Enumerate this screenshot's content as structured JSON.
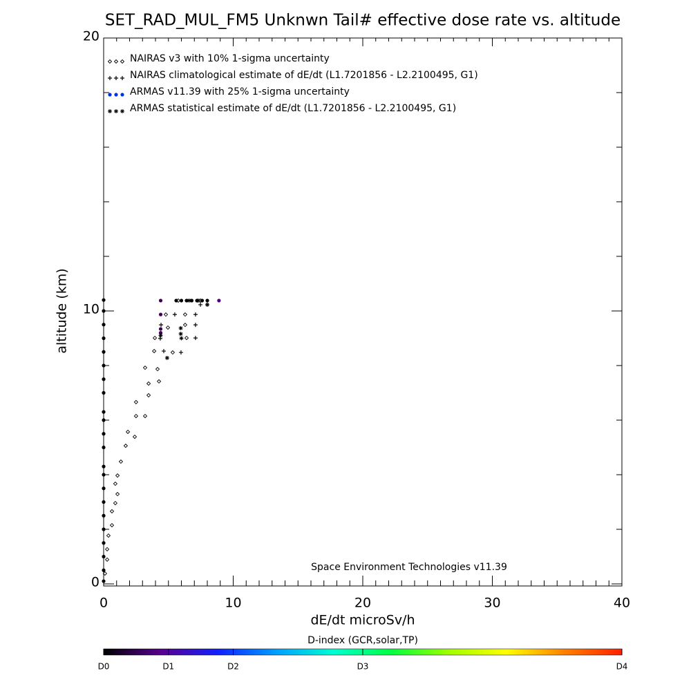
{
  "chart_data": {
    "type": "scatter",
    "title": "SET_RAD_MUL_FM5 Unknwn Tail#  effective dose rate vs. altitude",
    "x_label": "dE/dt microSv/h",
    "y_label": "altitude (km)",
    "annotation": "Space Environment Technologies v11.39",
    "xlim": [
      0,
      40
    ],
    "xticks": [
      0,
      10,
      20,
      30,
      40
    ],
    "ylim": [
      0,
      20
    ],
    "yticks": [
      0,
      10,
      20
    ],
    "legend": "top-left",
    "series": [
      {
        "name": "NAIRAS v3 with 10% 1-sigma uncertainty",
        "marker": "diamond",
        "color": "#000000",
        "x": [
          0.1,
          0.27,
          0.27,
          0.37,
          0.64,
          0.64,
          0.9,
          1.07,
          0.9,
          1.07,
          1.33,
          1.7,
          2.4,
          1.87,
          3.2,
          2.5,
          2.5,
          3.47,
          3.47,
          4.27,
          3.2,
          4.16,
          3.9,
          5.33,
          3.95,
          6.4,
          4.96,
          6.29,
          4.8,
          6.29,
          5.76,
          7.47
        ],
        "y": [
          0.38,
          0.89,
          1.27,
          1.77,
          2.15,
          2.66,
          2.96,
          3.29,
          3.67,
          3.97,
          4.48,
          5.06,
          5.39,
          5.57,
          6.15,
          6.15,
          6.66,
          6.91,
          7.34,
          7.42,
          7.92,
          7.87,
          8.53,
          8.48,
          9.01,
          9.01,
          9.39,
          9.87,
          9.87,
          9.49,
          10.38,
          10.38
        ]
      },
      {
        "name": "NAIRAS climatological estimate of dE/dt (L1.7201856 - L2.2100495, G1)",
        "marker": "plus",
        "color": "#000000",
        "x": [
          4.37,
          4.64,
          5.97,
          4.43,
          5.49,
          7.09,
          7.09,
          7.09,
          8.0,
          7.47
        ],
        "y": [
          8.99,
          8.53,
          8.48,
          9.49,
          9.87,
          9.01,
          9.49,
          9.87,
          10.23,
          10.23
        ]
      },
      {
        "name": "ARMAS v11.39 with 25% 1-sigma uncertainty",
        "marker": "dot",
        "color": "#0030e0",
        "x": [
          0,
          0,
          0,
          0,
          0,
          0,
          0,
          0,
          0,
          0,
          0,
          0,
          0,
          0,
          0,
          0,
          0,
          0,
          0,
          0,
          0,
          0,
          4.4,
          4.4,
          4.4,
          4.4,
          5.6,
          6.0,
          6.4,
          6.8,
          7.2,
          7.6,
          8.0,
          8.9
        ],
        "y": [
          0.1,
          0.5,
          1.0,
          1.5,
          2.0,
          2.5,
          3.0,
          3.5,
          4.0,
          4.3,
          5.0,
          5.5,
          6.0,
          6.3,
          7.0,
          7.5,
          8.0,
          8.5,
          9.0,
          9.5,
          10.0,
          10.4,
          10.38,
          9.87,
          9.34,
          9.2,
          10.38,
          10.38,
          10.38,
          10.38,
          10.38,
          10.38,
          10.38,
          10.38
        ],
        "point_colors": [
          "#000000",
          "#000000",
          "#000000",
          "#000000",
          "#000000",
          "#000000",
          "#000000",
          "#000000",
          "#000000",
          "#000000",
          "#000000",
          "#000000",
          "#000000",
          "#000000",
          "#000000",
          "#000000",
          "#000000",
          "#000000",
          "#000000",
          "#000000",
          "#000000",
          "#000000",
          "#400058",
          "#400058",
          "#400058",
          "#400058",
          "#000000",
          "#000000",
          "#000000",
          "#000000",
          "#000000",
          "#000000",
          "#000000",
          "#500080"
        ]
      },
      {
        "name": "ARMAS statistical estimate of dE/dt (L1.7201856 - L2.2100495, G1)",
        "marker": "star",
        "color": "#000000",
        "x": [
          4.9,
          6.0,
          5.95,
          5.95,
          4.4,
          8.0,
          7.3,
          6.6
        ],
        "y": [
          8.28,
          9.0,
          9.37,
          9.16,
          9.1,
          10.23,
          10.38,
          10.38
        ]
      }
    ],
    "colorbar": {
      "title": "D-index (GCR,solar,TP)",
      "lim": [
        0,
        4
      ],
      "ticks": [
        {
          "value": 0,
          "label": "D0"
        },
        {
          "value": 0.5,
          "label": "D1"
        },
        {
          "value": 1,
          "label": "D2"
        },
        {
          "value": 2,
          "label": "D3"
        },
        {
          "value": 4,
          "label": "D4"
        }
      ],
      "colors": [
        "#000000",
        "#5a0090",
        "#1020ff",
        "#00a0ff",
        "#00ffd0",
        "#00ff40",
        "#a0ff00",
        "#ffff00",
        "#ff8000",
        "#ff2000"
      ]
    }
  }
}
